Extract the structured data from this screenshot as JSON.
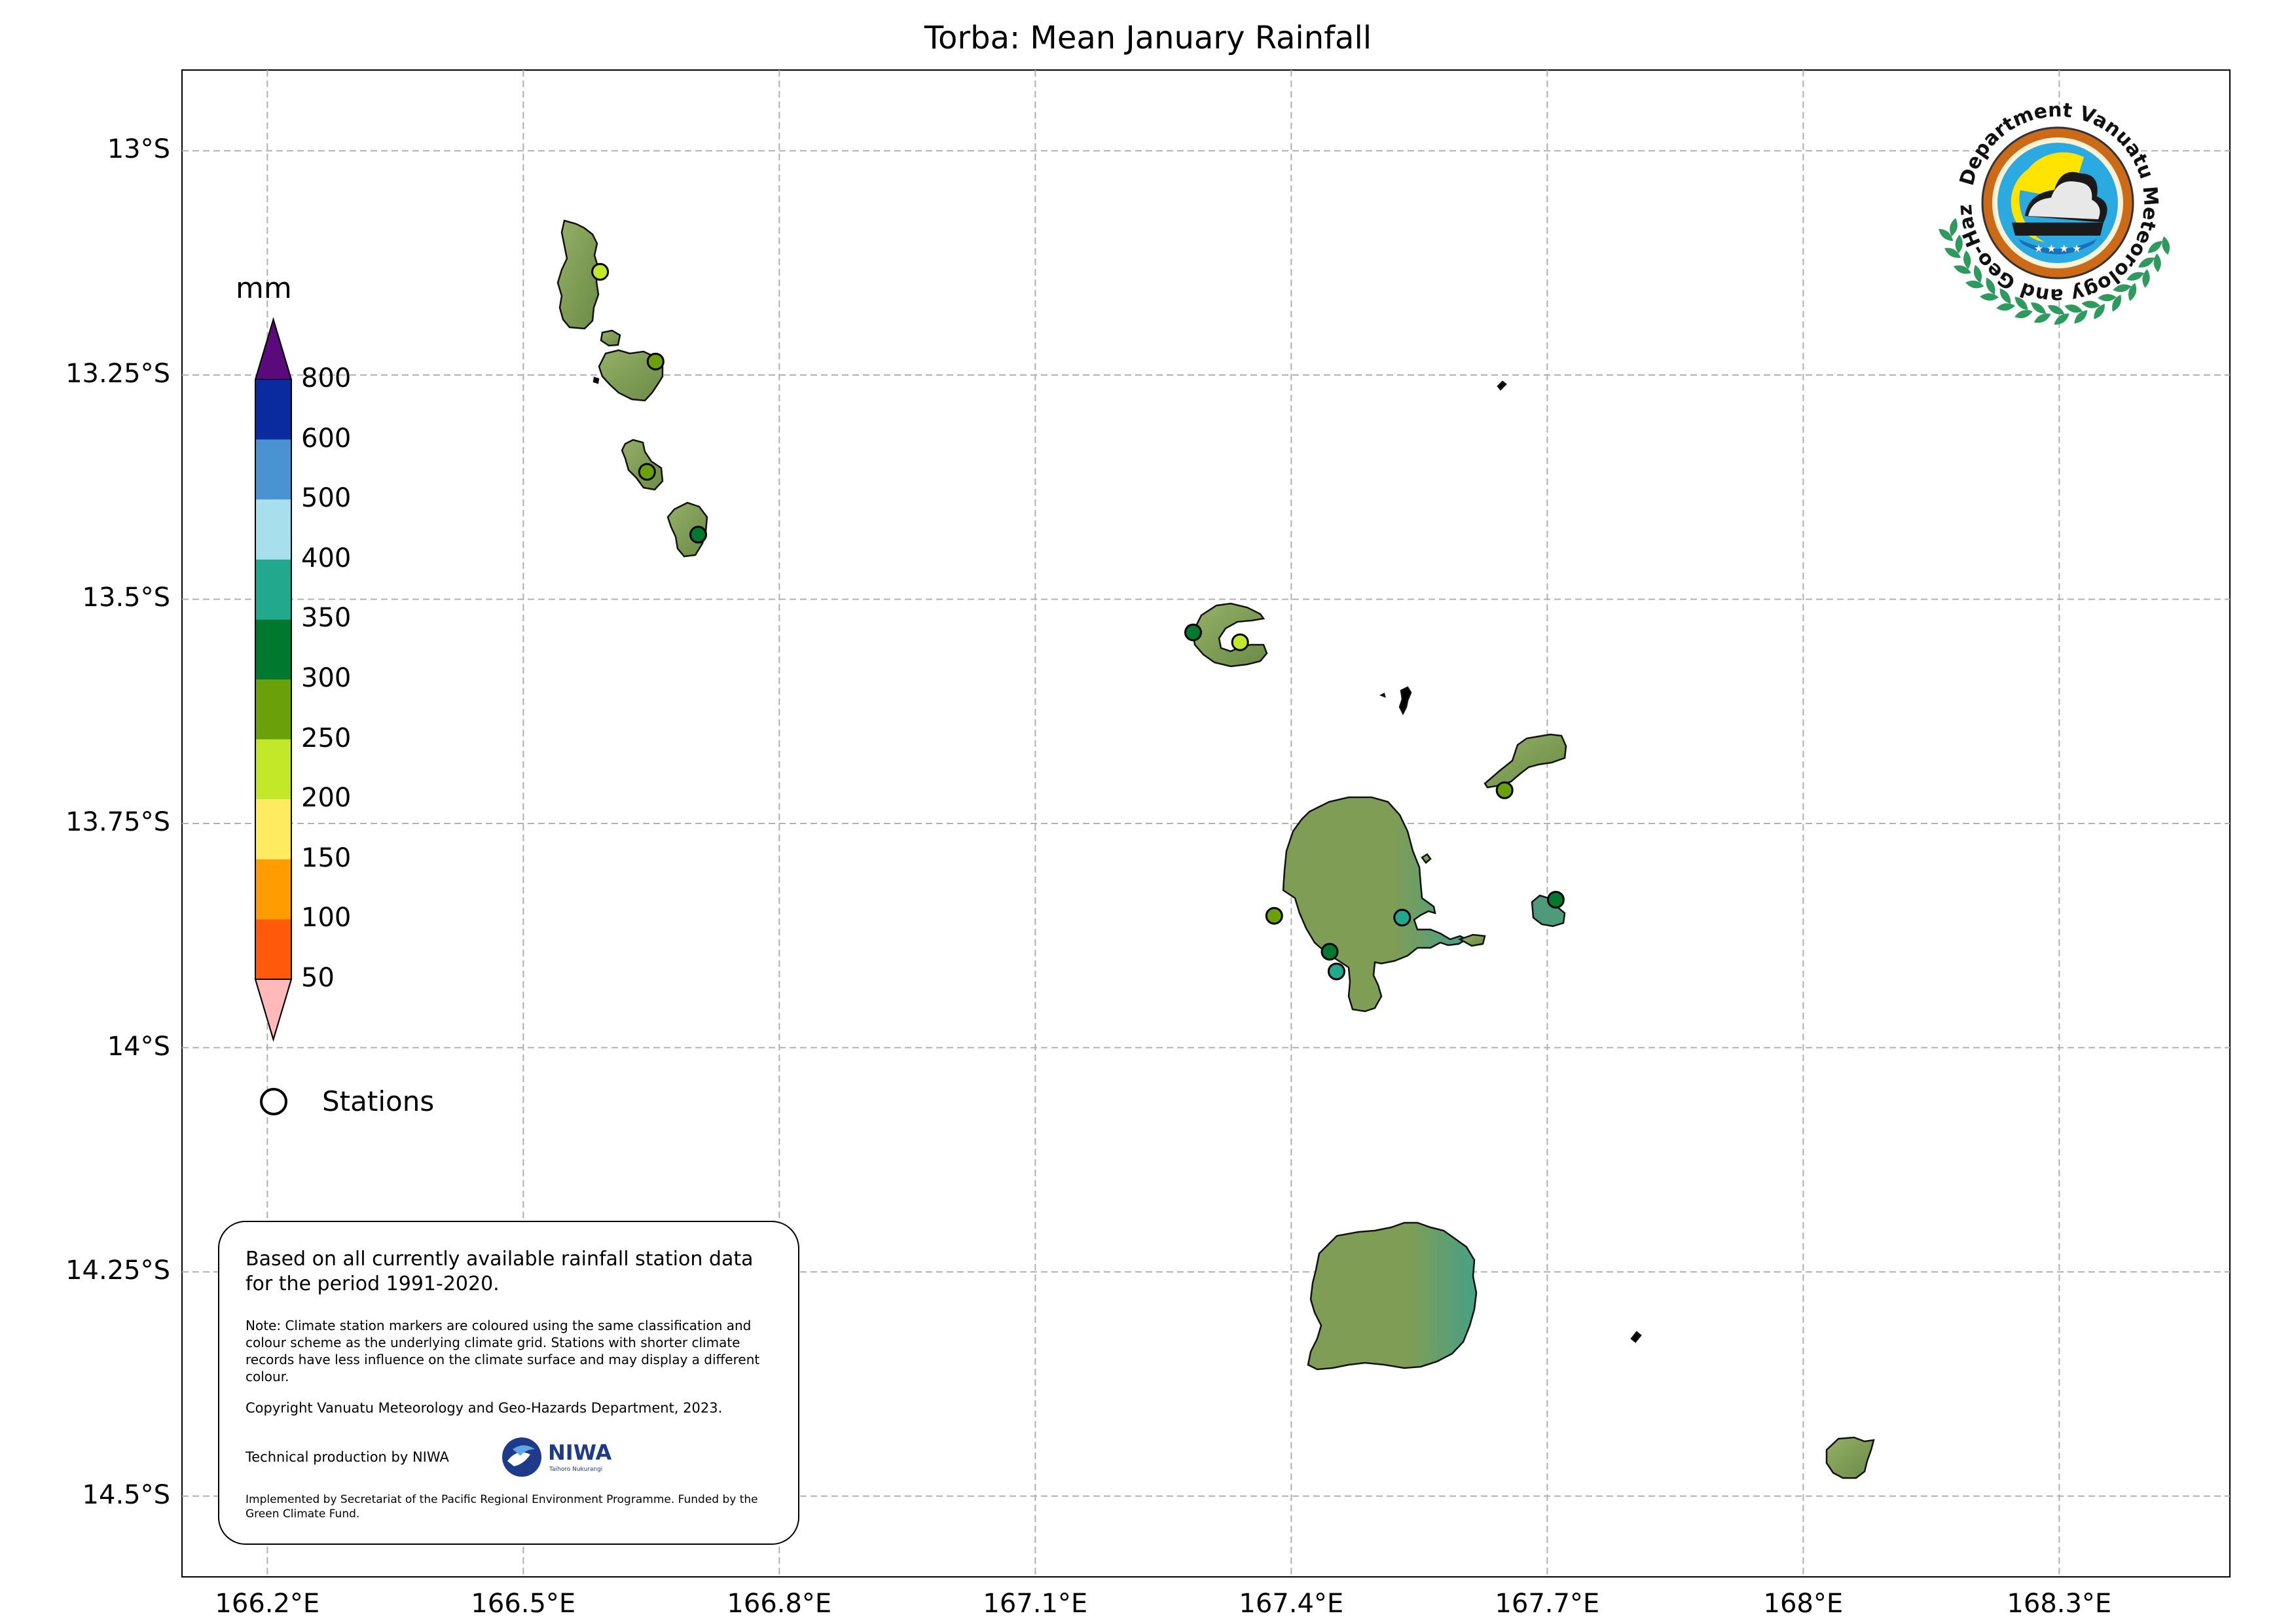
{
  "title": "Torba: Mean January Rainfall",
  "axes": {
    "y_labels": [
      {
        "lat": -13.0,
        "text": "13°S"
      },
      {
        "lat": -13.25,
        "text": "13.25°S"
      },
      {
        "lat": -13.5,
        "text": "13.5°S"
      },
      {
        "lat": -13.75,
        "text": "13.75°S"
      },
      {
        "lat": -14.0,
        "text": "14°S"
      },
      {
        "lat": -14.25,
        "text": "14.25°S"
      },
      {
        "lat": -14.5,
        "text": "14.5°S"
      }
    ],
    "x_labels": [
      {
        "lon": 166.2,
        "text": "166.2°E"
      },
      {
        "lon": 166.5,
        "text": "166.5°E"
      },
      {
        "lon": 166.8,
        "text": "166.8°E"
      },
      {
        "lon": 167.1,
        "text": "167.1°E"
      },
      {
        "lon": 167.4,
        "text": "167.4°E"
      },
      {
        "lon": 167.7,
        "text": "167.7°E"
      },
      {
        "lon": 168.0,
        "text": "168°E"
      },
      {
        "lon": 168.3,
        "text": "168.3°E"
      }
    ],
    "lon_range": [
      166.1,
      168.5
    ],
    "lat_range": [
      -14.59,
      -12.91
    ]
  },
  "colorbar": {
    "unit": "mm",
    "labels": [
      "800",
      "600",
      "500",
      "400",
      "350",
      "300",
      "250",
      "200",
      "150",
      "100",
      "50"
    ],
    "colors": [
      "#5a0a7a",
      "#0a2ba0",
      "#4a93d3",
      "#a7dfec",
      "#22a88c",
      "#00782d",
      "#6aa00a",
      "#c3e82a",
      "#ffeb5f",
      "#ff9d00",
      "#ff5a0a",
      "#ffb9b9"
    ]
  },
  "legend": {
    "stations_label": "Stations"
  },
  "info": {
    "main": "Based on all currently available rainfall station data for the period 1991-2020.",
    "note": "Note: Climate station markers are coloured using the same classification and colour scheme as the underlying climate grid. Stations with shorter climate records have less influence on the climate surface and may display a different colour.",
    "copyright": "Copyright Vanuatu Meteorology and Geo-Hazards Department, 2023.",
    "technical": "Technical production by NIWA",
    "implemented": "Implemented by Secretariat of the Pacific Regional Environment Programme. Funded by the Green Climate Fund."
  },
  "logos": {
    "department_text": "Department Vanuatu Meteorology and Geo-Hazards",
    "niwa_text": "NIWA",
    "niwa_sub": "Taihoro Nukurangi"
  },
  "stations": [
    {
      "lon": 166.59,
      "lat": -13.135,
      "color": "#c3e82a"
    },
    {
      "lon": 166.655,
      "lat": -13.235,
      "color": "#6aa00a"
    },
    {
      "lon": 166.645,
      "lat": -13.358,
      "color": "#6aa00a"
    },
    {
      "lon": 166.705,
      "lat": -13.428,
      "color": "#00782d"
    },
    {
      "lon": 167.285,
      "lat": -13.537,
      "color": "#00782d"
    },
    {
      "lon": 167.34,
      "lat": -13.548,
      "color": "#c3e82a"
    },
    {
      "lon": 167.65,
      "lat": -13.713,
      "color": "#6aa00a"
    },
    {
      "lon": 167.71,
      "lat": -13.835,
      "color": "#00782d"
    },
    {
      "lon": 167.38,
      "lat": -13.853,
      "color": "#6aa00a"
    },
    {
      "lon": 167.53,
      "lat": -13.855,
      "color": "#22a88c"
    },
    {
      "lon": 167.445,
      "lat": -13.893,
      "color": "#00782d"
    },
    {
      "lon": 167.453,
      "lat": -13.915,
      "color": "#22a88c"
    }
  ]
}
